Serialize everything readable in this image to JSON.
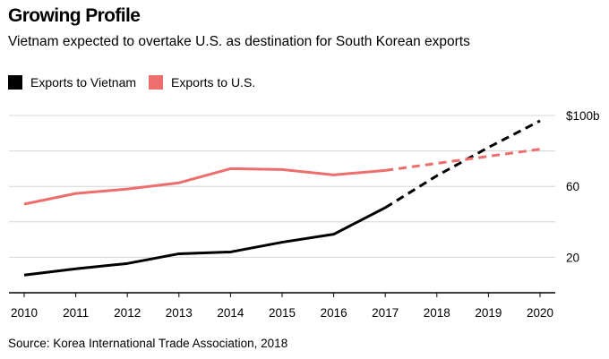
{
  "header": {
    "title": "Growing Profile",
    "subtitle": "Vietnam expected to overtake U.S. as destination for South Korean exports"
  },
  "footer": {
    "source": "Source: Korea International Trade Association, 2018"
  },
  "colors": {
    "vietnam": "#000000",
    "us": "#ee6e6e",
    "grid": "#d6d6d6",
    "axis": "#000000"
  },
  "chart_data": {
    "type": "line",
    "title": "Growing Profile",
    "subtitle": "Vietnam expected to overtake U.S. as destination for South Korean exports",
    "xlabel": "",
    "ylabel": "",
    "x": [
      2010,
      2011,
      2012,
      2013,
      2014,
      2015,
      2016,
      2017,
      2018,
      2019,
      2020
    ],
    "x_tick_labels": [
      "2010",
      "2011",
      "2012",
      "2013",
      "2014",
      "2015",
      "2016",
      "2017",
      "2018",
      "2019",
      "2020"
    ],
    "y_ticks": [
      20,
      60,
      100
    ],
    "y_tick_labels": [
      "20",
      "60",
      "$100b"
    ],
    "ylim": [
      0,
      100
    ],
    "grid": true,
    "legend_position": "top-left",
    "projected_from": 2017,
    "series": [
      {
        "name": "Exports to Vietnam",
        "color": "#000000",
        "values": [
          10,
          13.5,
          16.5,
          22,
          23,
          28.5,
          33,
          48,
          66,
          82,
          97
        ]
      },
      {
        "name": "Exports to U.S.",
        "color": "#ee6e6e",
        "values": [
          50,
          56,
          58.5,
          62,
          70,
          69.5,
          66.5,
          69,
          73,
          77,
          81
        ]
      }
    ]
  }
}
